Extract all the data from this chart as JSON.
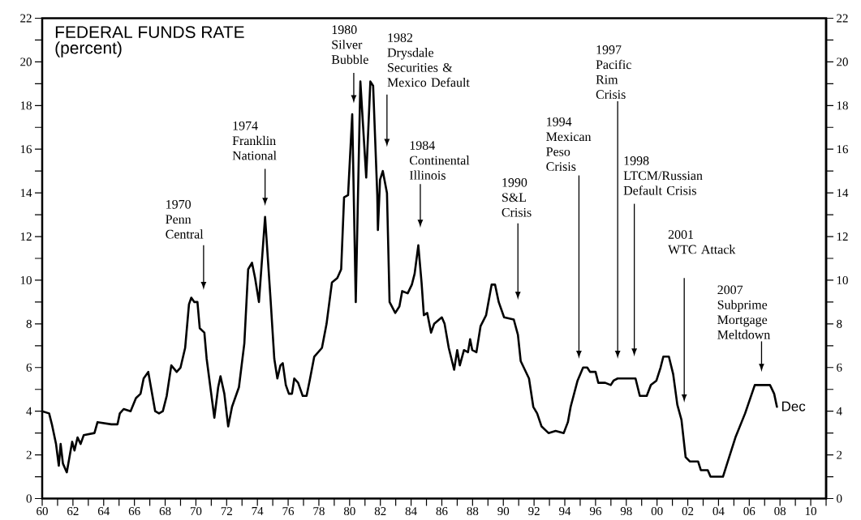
{
  "chart_data": {
    "type": "line",
    "title": "FEDERAL FUNDS RATE",
    "subtitle": "(percent)",
    "color": "#000000",
    "x": [
      1960.0,
      1960.45,
      1960.63,
      1960.9,
      1961.08,
      1961.2,
      1961.35,
      1961.6,
      1961.8,
      1961.95,
      1962.1,
      1962.3,
      1962.5,
      1962.7,
      1963.4,
      1963.6,
      1964.5,
      1964.9,
      1965.05,
      1965.3,
      1965.75,
      1966.1,
      1966.4,
      1966.6,
      1966.9,
      1967.1,
      1967.35,
      1967.6,
      1967.85,
      1968.1,
      1968.4,
      1968.75,
      1969.0,
      1969.3,
      1969.55,
      1969.7,
      1969.9,
      1970.1,
      1970.25,
      1970.55,
      1970.7,
      1971.2,
      1971.45,
      1971.6,
      1971.85,
      1972.1,
      1972.35,
      1972.8,
      1973.15,
      1973.4,
      1973.65,
      1973.85,
      1974.1,
      1974.5,
      1974.85,
      1975.1,
      1975.3,
      1975.5,
      1975.65,
      1975.85,
      1976.05,
      1976.25,
      1976.4,
      1976.65,
      1976.95,
      1977.2,
      1977.4,
      1977.7,
      1978.2,
      1978.5,
      1978.85,
      1979.2,
      1979.45,
      1979.64,
      1979.9,
      1980.17,
      1980.4,
      1980.7,
      1981.08,
      1981.35,
      1981.53,
      1981.8,
      1981.84,
      1981.98,
      1982.16,
      1982.43,
      1982.6,
      1982.97,
      1983.24,
      1983.42,
      1983.78,
      1984.05,
      1984.23,
      1984.47,
      1984.68,
      1984.83,
      1985.05,
      1985.3,
      1985.5,
      1986.0,
      1986.18,
      1986.45,
      1986.8,
      1987.0,
      1987.17,
      1987.44,
      1987.7,
      1987.84,
      1987.98,
      1988.25,
      1988.52,
      1988.88,
      1989.24,
      1989.46,
      1989.7,
      1990.05,
      1990.68,
      1990.95,
      1991.13,
      1991.4,
      1991.67,
      1991.95,
      1992.2,
      1992.49,
      1992.94,
      1993.4,
      1993.93,
      1994.2,
      1994.38,
      1994.83,
      1995.19,
      1995.46,
      1995.64,
      1996.0,
      1996.18,
      1996.63,
      1996.99,
      1997.17,
      1997.44,
      1998.16,
      1998.6,
      1998.88,
      1999.06,
      1999.33,
      1999.6,
      1999.96,
      2000.23,
      2000.41,
      2000.77,
      2001.05,
      2001.32,
      2001.59,
      2001.86,
      2002.13,
      2002.67,
      2002.85,
      2003.3,
      2003.48,
      2004.29,
      2004.56,
      2005.1,
      2005.73,
      2006.36,
      2007.35,
      2007.62,
      2007.8
    ],
    "values": [
      4.0,
      3.9,
      3.4,
      2.5,
      1.5,
      2.5,
      1.6,
      1.2,
      2.0,
      2.6,
      2.2,
      2.8,
      2.5,
      2.9,
      3.0,
      3.5,
      3.4,
      3.4,
      3.9,
      4.1,
      4.0,
      4.6,
      4.8,
      5.5,
      5.8,
      5.0,
      4.0,
      3.9,
      4.0,
      4.7,
      6.1,
      5.8,
      6.0,
      6.9,
      8.9,
      9.2,
      9.0,
      9.0,
      7.8,
      7.6,
      6.4,
      3.7,
      5.1,
      5.6,
      4.8,
      3.3,
      4.2,
      5.1,
      7.1,
      10.5,
      10.8,
      10.1,
      9.0,
      12.9,
      9.2,
      6.4,
      5.5,
      6.1,
      6.2,
      5.2,
      4.8,
      4.8,
      5.5,
      5.3,
      4.7,
      4.7,
      5.4,
      6.5,
      6.9,
      8.0,
      9.9,
      10.1,
      10.5,
      13.8,
      13.9,
      17.6,
      9.0,
      19.1,
      14.7,
      19.1,
      18.9,
      13.9,
      12.3,
      14.6,
      15.0,
      14.0,
      9.0,
      8.5,
      8.8,
      9.5,
      9.4,
      9.8,
      10.3,
      11.6,
      9.9,
      8.4,
      8.5,
      7.6,
      8.0,
      8.3,
      8.0,
      6.9,
      5.9,
      6.8,
      6.1,
      6.8,
      6.7,
      7.3,
      6.8,
      6.7,
      7.9,
      8.4,
      9.8,
      9.8,
      9.0,
      8.3,
      8.2,
      7.5,
      6.3,
      5.9,
      5.5,
      4.2,
      3.9,
      3.3,
      3.0,
      3.1,
      3.0,
      3.5,
      4.2,
      5.4,
      6.0,
      6.0,
      5.8,
      5.8,
      5.3,
      5.3,
      5.2,
      5.4,
      5.5,
      5.5,
      5.5,
      4.7,
      4.7,
      4.7,
      5.2,
      5.4,
      6.0,
      6.5,
      6.5,
      5.7,
      4.3,
      3.6,
      1.9,
      1.7,
      1.7,
      1.3,
      1.3,
      1.0,
      1.0,
      1.6,
      2.8,
      3.9,
      5.2,
      5.2,
      4.8,
      4.2
    ],
    "xlim": [
      1960,
      2011
    ],
    "xticks": [
      {
        "value": 1960,
        "label": "60"
      },
      {
        "value": 1961,
        "label": null
      },
      {
        "value": 1962,
        "label": "62"
      },
      {
        "value": 1963,
        "label": null
      },
      {
        "value": 1964,
        "label": "64"
      },
      {
        "value": 1965,
        "label": null
      },
      {
        "value": 1966,
        "label": "66"
      },
      {
        "value": 1967,
        "label": null
      },
      {
        "value": 1968,
        "label": "68"
      },
      {
        "value": 1969,
        "label": null
      },
      {
        "value": 1970,
        "label": "70"
      },
      {
        "value": 1971,
        "label": null
      },
      {
        "value": 1972,
        "label": "72"
      },
      {
        "value": 1973,
        "label": null
      },
      {
        "value": 1974,
        "label": "74"
      },
      {
        "value": 1975,
        "label": null
      },
      {
        "value": 1976,
        "label": "76"
      },
      {
        "value": 1977,
        "label": null
      },
      {
        "value": 1978,
        "label": "78"
      },
      {
        "value": 1979,
        "label": null
      },
      {
        "value": 1980,
        "label": "80"
      },
      {
        "value": 1981,
        "label": null
      },
      {
        "value": 1982,
        "label": "82"
      },
      {
        "value": 1983,
        "label": null
      },
      {
        "value": 1984,
        "label": "84"
      },
      {
        "value": 1985,
        "label": null
      },
      {
        "value": 1986,
        "label": "86"
      },
      {
        "value": 1987,
        "label": null
      },
      {
        "value": 1988,
        "label": "88"
      },
      {
        "value": 1989,
        "label": null
      },
      {
        "value": 1990,
        "label": "90"
      },
      {
        "value": 1991,
        "label": null
      },
      {
        "value": 1992,
        "label": "92"
      },
      {
        "value": 1993,
        "label": null
      },
      {
        "value": 1994,
        "label": "94"
      },
      {
        "value": 1995,
        "label": null
      },
      {
        "value": 1996,
        "label": "96"
      },
      {
        "value": 1997,
        "label": null
      },
      {
        "value": 1998,
        "label": "98"
      },
      {
        "value": 1999,
        "label": null
      },
      {
        "value": 2000,
        "label": "00"
      },
      {
        "value": 2001,
        "label": null
      },
      {
        "value": 2002,
        "label": "02"
      },
      {
        "value": 2003,
        "label": null
      },
      {
        "value": 2004,
        "label": "04"
      },
      {
        "value": 2005,
        "label": null
      },
      {
        "value": 2006,
        "label": "06"
      },
      {
        "value": 2007,
        "label": null
      },
      {
        "value": 2008,
        "label": "08"
      },
      {
        "value": 2009,
        "label": null
      },
      {
        "value": 2010,
        "label": "10"
      },
      {
        "value": 2011,
        "label": null
      }
    ],
    "ylim": [
      0,
      22
    ],
    "yticks": [
      0,
      {
        "value": 1,
        "label": null
      },
      2,
      {
        "value": 3,
        "label": null
      },
      4,
      {
        "value": 5,
        "label": null
      },
      6,
      {
        "value": 7,
        "label": null
      },
      8,
      {
        "value": 9,
        "label": null
      },
      10,
      {
        "value": 11,
        "label": null
      },
      12,
      {
        "value": 13,
        "label": null
      },
      14,
      {
        "value": 15,
        "label": null
      },
      16,
      {
        "value": 17,
        "label": null
      },
      18,
      {
        "value": 19,
        "label": null
      },
      20,
      {
        "value": 21,
        "label": null
      },
      22
    ],
    "y2lim": [
      0,
      22
    ],
    "y2ticks": [
      0,
      {
        "value": 1,
        "label": null
      },
      2,
      {
        "value": 3,
        "label": null
      },
      4,
      {
        "value": 5,
        "label": null
      },
      6,
      {
        "value": 7,
        "label": null
      },
      8,
      {
        "value": 9,
        "label": null
      },
      10,
      {
        "value": 11,
        "label": null
      },
      12,
      {
        "value": 13,
        "label": null
      },
      14,
      {
        "value": 15,
        "label": null
      },
      16,
      {
        "value": 17,
        "label": null
      },
      18,
      {
        "value": 19,
        "label": null
      },
      20,
      {
        "value": 21,
        "label": null
      },
      22
    ],
    "annotations": [
      "1970\nPenn\nCentral",
      "1974\nFranklin\nNational",
      "1980\nSilver\nBubble",
      "1982\nDrysdale\nSecurities &\nMexico Default",
      "1984\nContinental\nIllinois",
      "1990\nS&L\nCrisis",
      "1994\nMexican\nPeso\nCrisis",
      "1997\nPacific\nRim\nCrisis",
      "1998\nLTCM/Russian\nDefault Crisis",
      "2001\nWTC Attack",
      "2007\nSubprime\nMortgage\nMeltdown",
      {
        "text": "Dec",
        "x": 2007.8,
        "y": 4.22
      }
    ]
  }
}
